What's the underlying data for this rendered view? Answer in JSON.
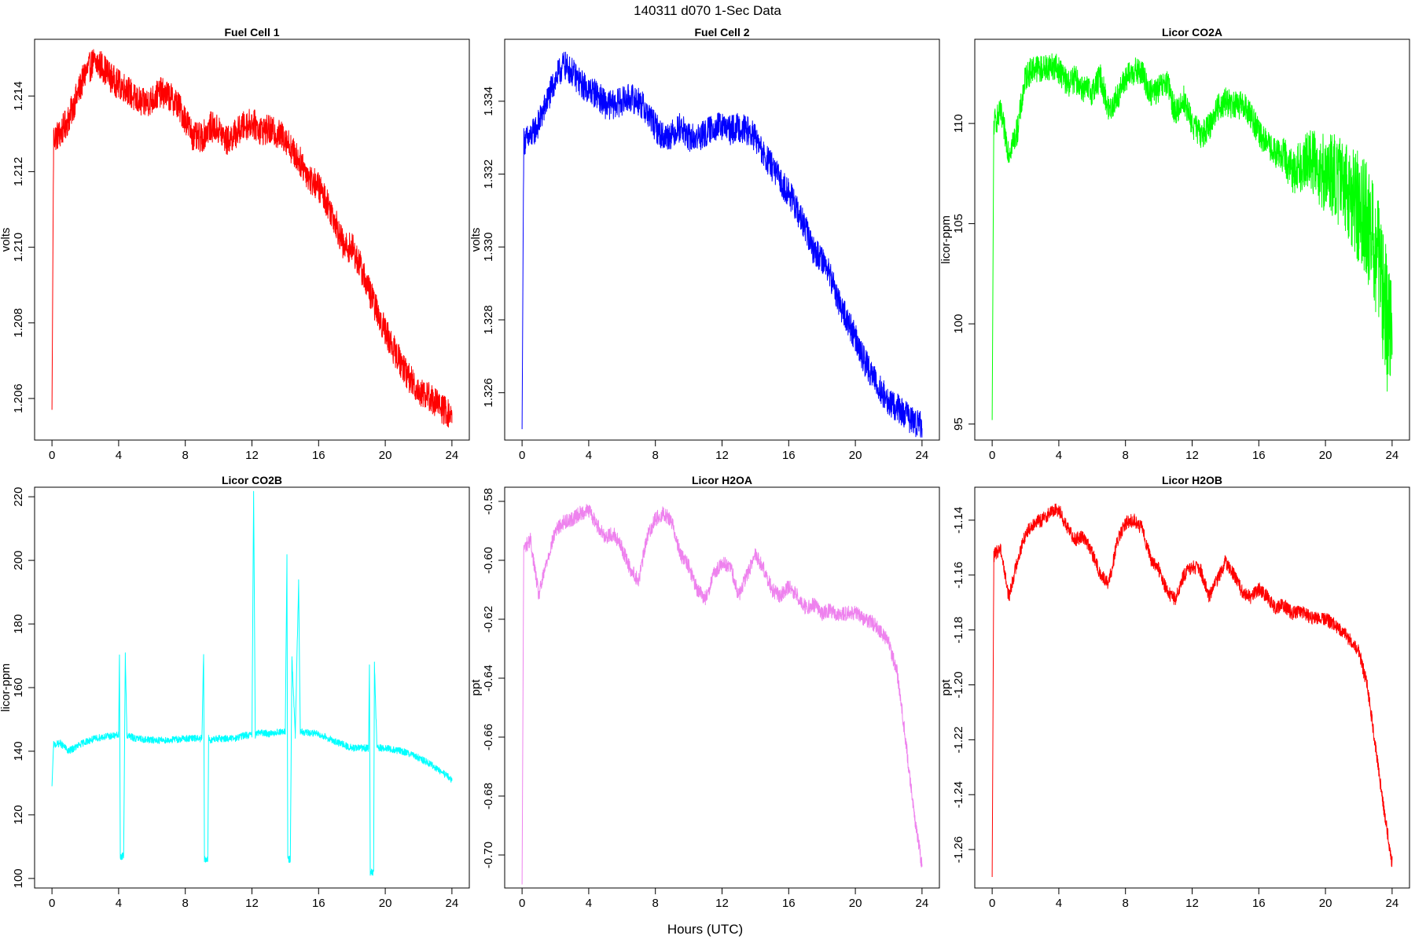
{
  "figure": {
    "title": "140311   d070   1-Sec Data",
    "xlabel": "Hours (UTC)"
  },
  "chart_data": [
    {
      "type": "line",
      "title": "Fuel Cell 1",
      "ylabel": "volts",
      "color": "#ff0000",
      "xlim": [
        0,
        24
      ],
      "ylim": [
        1.2049,
        1.2155
      ],
      "xticks": [
        0,
        4,
        8,
        12,
        16,
        20,
        24
      ],
      "yticks": [
        1.206,
        1.208,
        1.21,
        1.212,
        1.214
      ],
      "ytick_labels": [
        "1.206",
        "1.208",
        "1.210",
        "1.212",
        "1.214"
      ],
      "noise": 0.0004,
      "series": [
        {
          "x": [
            0,
            0.1,
            0.5,
            1,
            1.5,
            2,
            2.5,
            3,
            3.5,
            4,
            4.5,
            5,
            5.5,
            6,
            6.5,
            7,
            7.5,
            8,
            8.5,
            9,
            9.5,
            10,
            10.5,
            11,
            11.5,
            12,
            12.5,
            13,
            13.5,
            14,
            14.5,
            15,
            15.5,
            16,
            16.5,
            17,
            17.5,
            18,
            18.5,
            19,
            19.5,
            20,
            20.5,
            21,
            21.5,
            22,
            22.5,
            23,
            23.5,
            24
          ],
          "y": [
            1.2057,
            1.2129,
            1.213,
            1.2134,
            1.214,
            1.2146,
            1.2149,
            1.2148,
            1.2145,
            1.2143,
            1.2142,
            1.2139,
            1.2138,
            1.2139,
            1.2141,
            1.214,
            1.2138,
            1.2134,
            1.2129,
            1.2129,
            1.2132,
            1.2131,
            1.2128,
            1.213,
            1.2132,
            1.2133,
            1.2131,
            1.2131,
            1.213,
            1.2129,
            1.2125,
            1.2122,
            1.2118,
            1.2116,
            1.2112,
            1.2107,
            1.21,
            1.21,
            1.2095,
            1.2089,
            1.2083,
            1.2078,
            1.2073,
            1.2069,
            1.2065,
            1.2062,
            1.2061,
            1.2059,
            1.2057,
            1.2055
          ]
        }
      ]
    },
    {
      "type": "line",
      "title": "Fuel Cell 2",
      "ylabel": "volts",
      "color": "#0000ff",
      "xlim": [
        0,
        24
      ],
      "ylim": [
        1.3247,
        1.3357
      ],
      "xticks": [
        0,
        4,
        8,
        12,
        16,
        20,
        24
      ],
      "yticks": [
        1.326,
        1.328,
        1.33,
        1.332,
        1.334
      ],
      "ytick_labels": [
        "1.326",
        "1.328",
        "1.330",
        "1.332",
        "1.334"
      ],
      "noise": 0.0004,
      "series": [
        {
          "x": [
            0,
            0.1,
            0.5,
            1,
            1.5,
            2,
            2.5,
            3,
            3.5,
            4,
            4.5,
            5,
            5.5,
            6,
            6.5,
            7,
            7.5,
            8,
            8.5,
            9,
            9.5,
            10,
            10.5,
            11,
            11.5,
            12,
            12.5,
            13,
            13.5,
            14,
            14.5,
            15,
            15.5,
            16,
            16.5,
            17,
            17.5,
            18,
            18.5,
            19,
            19.5,
            20,
            20.5,
            21,
            21.5,
            22,
            22.5,
            23,
            23.5,
            24
          ],
          "y": [
            1.325,
            1.3329,
            1.333,
            1.3334,
            1.334,
            1.3346,
            1.335,
            1.3348,
            1.3345,
            1.3343,
            1.3342,
            1.3339,
            1.3339,
            1.334,
            1.3341,
            1.334,
            1.3337,
            1.3333,
            1.333,
            1.3331,
            1.3333,
            1.333,
            1.333,
            1.3331,
            1.3333,
            1.3333,
            1.3332,
            1.3333,
            1.3332,
            1.333,
            1.3325,
            1.3322,
            1.3318,
            1.3315,
            1.331,
            1.3305,
            1.3299,
            1.3297,
            1.3292,
            1.3285,
            1.328,
            1.3275,
            1.3269,
            1.3265,
            1.3261,
            1.3257,
            1.3256,
            1.3254,
            1.3252,
            1.3251
          ]
        }
      ]
    },
    {
      "type": "line",
      "title": "Licor CO2A",
      "ylabel": "licor-ppm",
      "color": "#00ff00",
      "xlim": [
        0,
        24
      ],
      "ylim": [
        94.2,
        114.2
      ],
      "xticks": [
        0,
        4,
        8,
        12,
        16,
        20,
        24
      ],
      "yticks": [
        95,
        100,
        105,
        110
      ],
      "ytick_labels": [
        "95",
        "100",
        "105",
        "110"
      ],
      "noise": 0.7,
      "series": [
        {
          "x": [
            0,
            0.1,
            0.5,
            1,
            1.5,
            2,
            2.5,
            3,
            3.5,
            4,
            4.5,
            5,
            5.5,
            6,
            6.5,
            7,
            7.5,
            8,
            8.5,
            9,
            9.5,
            10,
            10.5,
            11,
            11.5,
            12,
            12.5,
            13,
            13.5,
            14,
            14.5,
            15,
            15.5,
            16,
            16.5,
            17,
            17.5,
            18,
            18.5,
            19,
            19.5,
            20,
            20.5,
            21,
            21.5,
            22,
            22.5,
            23,
            23.5,
            24
          ],
          "y": [
            95.2,
            110.0,
            110.5,
            108.6,
            109.6,
            112.3,
            112.8,
            112.7,
            112.9,
            112.7,
            112.0,
            112.2,
            111.7,
            111.6,
            112.3,
            110.6,
            111.3,
            112.2,
            112.6,
            112.5,
            111.5,
            111.7,
            112.0,
            110.5,
            111.2,
            110.0,
            109.4,
            109.8,
            110.8,
            111.1,
            110.9,
            110.9,
            110.5,
            109.5,
            109.0,
            108.5,
            108.4,
            107.6,
            107.9,
            108.3,
            107.8,
            107.5,
            107.3,
            107.0,
            106.6,
            105.8,
            105.0,
            103.8,
            101.3,
            98.5
          ]
        }
      ]
    },
    {
      "type": "line",
      "title": "Licor CO2B",
      "ylabel": "licor-ppm",
      "color": "#00ffff",
      "xlim": [
        0,
        24
      ],
      "ylim": [
        97,
        223
      ],
      "xticks": [
        0,
        4,
        8,
        12,
        16,
        20,
        24
      ],
      "yticks": [
        100,
        120,
        140,
        160,
        180,
        200,
        220
      ],
      "ytick_labels": [
        "100",
        "120",
        "140",
        "160",
        "180",
        "200",
        "220"
      ],
      "noise": 1.1,
      "series": [
        {
          "x": [
            0,
            0.1,
            0.5,
            1,
            2,
            3,
            4,
            4.05,
            4.1,
            4.3,
            4.4,
            4.5,
            5,
            6,
            7,
            8,
            9,
            9.1,
            9.15,
            9.35,
            9.4,
            9.5,
            10,
            11,
            11.5,
            12,
            12.1,
            12.2,
            12.3,
            13,
            13.5,
            14,
            14.1,
            14.15,
            14.3,
            14.4,
            14.6,
            14.8,
            14.9,
            15,
            16,
            17,
            18,
            19,
            19.05,
            19.1,
            19.3,
            19.35,
            19.5,
            20,
            21,
            22,
            23,
            24
          ],
          "y": [
            129,
            142,
            142.5,
            140,
            143,
            144.5,
            145,
            170,
            107,
            107,
            170,
            145,
            144,
            143.5,
            143.5,
            144,
            144,
            171,
            106,
            106,
            144,
            143.5,
            144,
            144,
            145,
            145,
            221,
            145,
            146,
            145.5,
            146,
            146,
            201,
            106,
            106,
            169,
            145,
            193,
            146,
            146,
            145.5,
            143,
            141,
            141,
            167,
            102,
            102,
            167,
            141,
            141,
            140,
            138,
            135,
            131
          ]
        }
      ]
    },
    {
      "type": "line",
      "title": "Licor H2OA",
      "ylabel": "ppt",
      "color": "#ee82ee",
      "xlim": [
        0,
        24
      ],
      "ylim": [
        -0.7112,
        -0.5752
      ],
      "xticks": [
        0,
        4,
        8,
        12,
        16,
        20,
        24
      ],
      "yticks": [
        -0.7,
        -0.68,
        -0.66,
        -0.64,
        -0.62,
        -0.6,
        -0.58
      ],
      "ytick_labels": [
        "-0.70",
        "-0.68",
        "-0.66",
        "-0.64",
        "-0.62",
        "-0.60",
        "-0.58"
      ],
      "noise": 0.0025,
      "series": [
        {
          "x": [
            0,
            0.1,
            0.5,
            1,
            1.5,
            2,
            2.5,
            3,
            3.5,
            4,
            4.5,
            5,
            5.5,
            6,
            6.5,
            7,
            7.5,
            8,
            8.5,
            9,
            9.5,
            10,
            10.5,
            11,
            11.5,
            12,
            12.5,
            13,
            13.5,
            14,
            14.5,
            15,
            15.5,
            16,
            16.5,
            17,
            17.5,
            18,
            18.5,
            19,
            19.5,
            20,
            20.5,
            21,
            21.5,
            22,
            22.5,
            23,
            23.5,
            24
          ],
          "y": [
            -0.71,
            -0.596,
            -0.593,
            -0.612,
            -0.6,
            -0.59,
            -0.587,
            -0.586,
            -0.584,
            -0.583,
            -0.588,
            -0.592,
            -0.591,
            -0.596,
            -0.603,
            -0.607,
            -0.592,
            -0.586,
            -0.584,
            -0.587,
            -0.598,
            -0.602,
            -0.61,
            -0.613,
            -0.605,
            -0.601,
            -0.602,
            -0.612,
            -0.605,
            -0.598,
            -0.603,
            -0.61,
            -0.612,
            -0.609,
            -0.612,
            -0.616,
            -0.615,
            -0.618,
            -0.617,
            -0.619,
            -0.618,
            -0.618,
            -0.62,
            -0.621,
            -0.624,
            -0.628,
            -0.638,
            -0.66,
            -0.685,
            -0.704
          ]
        }
      ]
    },
    {
      "type": "line",
      "title": "Licor H2OB",
      "ylabel": "ppt",
      "color": "#ff0000",
      "xlim": [
        0,
        24
      ],
      "ylim": [
        -1.274,
        -1.128
      ],
      "xticks": [
        0,
        4,
        8,
        12,
        16,
        20,
        24
      ],
      "yticks": [
        -1.26,
        -1.24,
        -1.22,
        -1.2,
        -1.18,
        -1.16,
        -1.14
      ],
      "ytick_labels": [
        "-1.26",
        "-1.24",
        "-1.22",
        "-1.20",
        "-1.18",
        "-1.16",
        "-1.14"
      ],
      "noise": 0.0025,
      "series": [
        {
          "x": [
            0,
            0.1,
            0.5,
            1,
            1.5,
            2,
            2.5,
            3,
            3.5,
            4,
            4.5,
            5,
            5.5,
            6,
            6.5,
            7,
            7.5,
            8,
            8.5,
            9,
            9.5,
            10,
            10.5,
            11,
            11.5,
            12,
            12.5,
            13,
            13.5,
            14,
            14.5,
            15,
            15.5,
            16,
            16.5,
            17,
            17.5,
            18,
            18.5,
            19,
            19.5,
            20,
            20.5,
            21,
            21.5,
            22,
            22.5,
            23,
            23.5,
            24
          ],
          "y": [
            -1.27,
            -1.153,
            -1.15,
            -1.168,
            -1.155,
            -1.145,
            -1.141,
            -1.14,
            -1.137,
            -1.136,
            -1.143,
            -1.147,
            -1.146,
            -1.152,
            -1.16,
            -1.163,
            -1.148,
            -1.141,
            -1.14,
            -1.143,
            -1.154,
            -1.158,
            -1.166,
            -1.169,
            -1.16,
            -1.157,
            -1.158,
            -1.168,
            -1.162,
            -1.155,
            -1.16,
            -1.166,
            -1.168,
            -1.165,
            -1.168,
            -1.172,
            -1.171,
            -1.174,
            -1.173,
            -1.175,
            -1.176,
            -1.176,
            -1.178,
            -1.18,
            -1.184,
            -1.188,
            -1.2,
            -1.222,
            -1.245,
            -1.265
          ]
        }
      ]
    }
  ]
}
